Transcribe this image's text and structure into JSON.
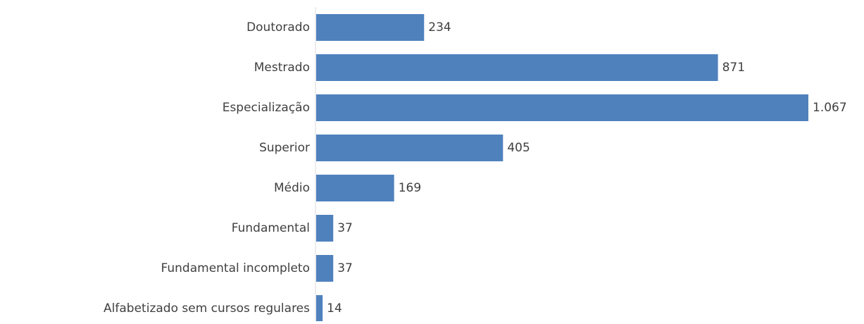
{
  "chart_data": {
    "type": "bar",
    "orientation": "horizontal",
    "categories": [
      "Doutorado",
      "Mestrado",
      "Especialização",
      "Superior",
      "Médio",
      "Fundamental",
      "Fundamental incompleto",
      "Alfabetizado sem cursos regulares"
    ],
    "values": [
      234,
      871,
      1067,
      405,
      169,
      37,
      37,
      14
    ],
    "data_labels": [
      "234",
      "871",
      "1.067",
      "405",
      "169",
      "37",
      "37",
      "14"
    ],
    "title": "",
    "xlabel": "",
    "ylabel": "",
    "xlim": [
      0,
      1067
    ],
    "grid": false,
    "legend": "none",
    "bar_color": "#4f81bd",
    "axis_color": "#d9d9d9",
    "text_color": "#404040"
  }
}
